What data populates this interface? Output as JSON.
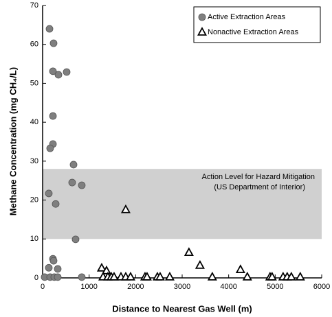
{
  "chart_data": {
    "type": "scatter",
    "xlabel": "Distance to Nearest Gas Well (m)",
    "ylabel": "Methane Concentration (mg CH₄/L)",
    "xlim": [
      0,
      6000
    ],
    "xticks": [
      0,
      1000,
      2000,
      3000,
      4000,
      5000,
      6000
    ],
    "ylim": [
      0,
      70
    ],
    "yticks": [
      0,
      10,
      20,
      30,
      40,
      50,
      60,
      70
    ],
    "grid": false,
    "legend": "upper right",
    "band": {
      "from": 10,
      "to": 28,
      "color": "#d0d0d0",
      "label": [
        "Action Level for Hazard Mitigation",
        "(US Department of Interior)"
      ]
    },
    "series": [
      {
        "name": "Active Extraction Areas",
        "marker": "circle",
        "color": "#7f7f7f",
        "x": [
          148,
          236,
          222,
          340,
          517,
          222,
          222,
          162,
          665,
          635,
          842,
          133,
          281,
          709,
          222,
          236,
          133,
          325,
          44,
          162,
          251,
          325,
          842
        ],
        "values": [
          64.0,
          60.3,
          53.1,
          52.2,
          52.9,
          41.6,
          34.4,
          33.3,
          29.1,
          24.5,
          23.8,
          21.7,
          19.0,
          9.9,
          4.9,
          4.4,
          2.6,
          2.3,
          0.2,
          0.2,
          0.2,
          0.2,
          0.2
        ]
      },
      {
        "name": "Nonactive Extraction Areas",
        "marker": "triangle",
        "color": "#ffffff",
        "x": [
          1787,
          3146,
          3383,
          4254,
          1270,
          1374,
          1300,
          1403,
          1477,
          1536,
          1684,
          1787,
          1891,
          2201,
          2245,
          2467,
          2526,
          2733,
          3648,
          4401,
          4889,
          4933,
          5170,
          5258,
          5347,
          5539
        ],
        "values": [
          17.5,
          6.5,
          3.2,
          2.1,
          2.5,
          1.8,
          0.2,
          0.2,
          0.2,
          0.2,
          0.2,
          0.2,
          0.2,
          0.2,
          0.2,
          0.2,
          0.2,
          0.2,
          0.2,
          0.2,
          0.2,
          0.2,
          0.2,
          0.2,
          0.2,
          0.2
        ]
      }
    ]
  }
}
